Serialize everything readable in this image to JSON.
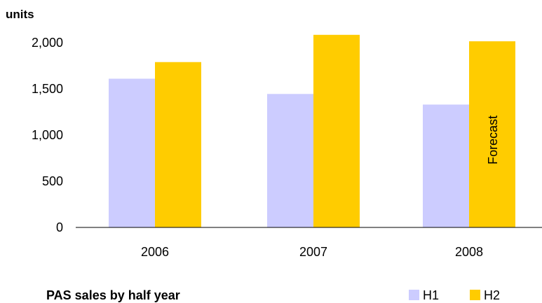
{
  "chart_data": {
    "type": "bar",
    "unit_label": "units",
    "caption": "PAS sales by half year",
    "categories": [
      "2006",
      "2007",
      "2008"
    ],
    "series": [
      {
        "name": "H1",
        "color": "#ccccff",
        "values": [
          1610,
          1445,
          1330
        ]
      },
      {
        "name": "H2",
        "color": "#ffcc00",
        "values": [
          1790,
          2085,
          2015
        ]
      }
    ],
    "annotation": {
      "text": "Forecast",
      "category": "2008",
      "series": "H2"
    },
    "yticks": [
      "0",
      "500",
      "1,000",
      "1,500",
      "2,000"
    ],
    "ytick_values": [
      0,
      500,
      1000,
      1500,
      2000
    ],
    "ylim": [
      0,
      2000
    ],
    "legend_position": "bottom-right",
    "grid": false
  }
}
